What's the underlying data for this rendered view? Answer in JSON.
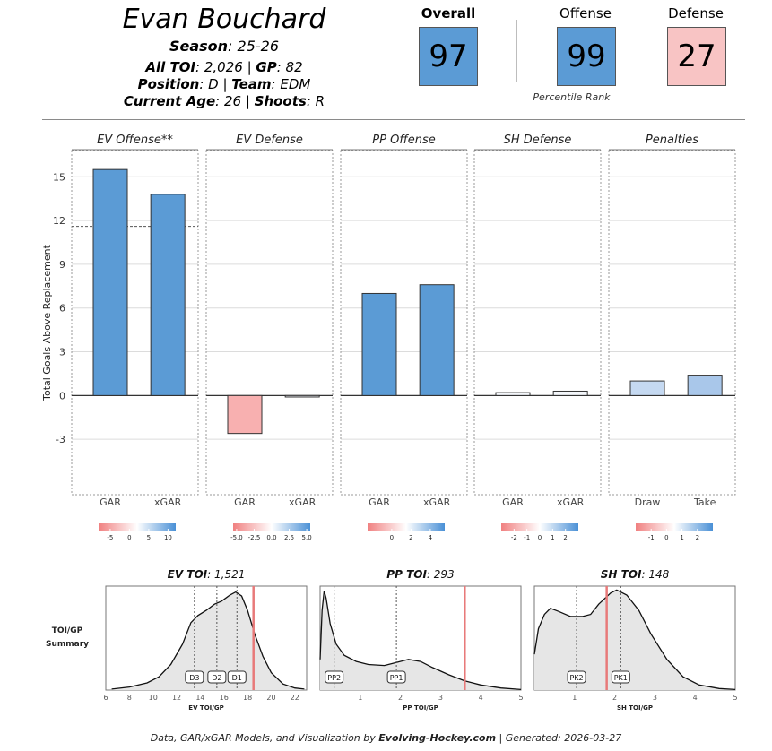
{
  "header": {
    "player_name": "Evan Bouchard",
    "season_label": "Season",
    "season": ": 25-26",
    "toi_label": "All TOI",
    "toi": ": 2,026 | ",
    "gp_label": "GP",
    "gp": ": 82",
    "position_label": "Position",
    "position": ": D | ",
    "team_label": "Team",
    "team": ": EDM",
    "age_label": "Current Age",
    "age": ": 26 | ",
    "shoots_label": "Shoots",
    "shoots": ": R"
  },
  "ranks": {
    "overall_label": "Overall",
    "overall": "97",
    "offense_label": "Offense",
    "offense": "99",
    "defense_label": "Defense",
    "defense": "27",
    "percentile_label": "Percentile Rank",
    "colors": {
      "overall": "#5b9bd5",
      "offense": "#5b9bd5",
      "defense": "#f8c4c4"
    }
  },
  "chart_data": [
    {
      "type": "bar",
      "ylabel": "Total Goals Above Replacement",
      "ylim": [
        -6.8,
        16.8
      ],
      "yticks": [
        -3,
        0,
        3,
        6,
        9,
        12,
        15
      ],
      "panels": [
        {
          "title": "EV Offense**",
          "categories": [
            "GAR",
            "xGAR"
          ],
          "values": [
            15.5,
            13.8
          ],
          "fills": [
            "#5b9bd5",
            "#5b9bd5"
          ],
          "reference": 11.6,
          "legend": {
            "ticks": [
              "-5",
              "0",
              "5",
              "10"
            ],
            "min": -8,
            "max": 12
          }
        },
        {
          "title": "EV Defense",
          "categories": [
            "GAR",
            "xGAR"
          ],
          "values": [
            -2.6,
            -0.1
          ],
          "fills": [
            "#f8b0b0",
            "#eef1f6"
          ],
          "legend": {
            "ticks": [
              "-5.0",
              "-2.5",
              "0.0",
              "2.5",
              "5.0"
            ],
            "min": -5.5,
            "max": 5.5
          }
        },
        {
          "title": "PP Offense",
          "categories": [
            "GAR",
            "xGAR"
          ],
          "values": [
            7.0,
            7.6
          ],
          "fills": [
            "#5b9bd5",
            "#5b9bd5"
          ],
          "legend": {
            "ticks": [
              "0",
              "2",
              "4"
            ],
            "min": -2.5,
            "max": 5.5
          }
        },
        {
          "title": "SH Defense",
          "categories": [
            "GAR",
            "xGAR"
          ],
          "values": [
            0.2,
            0.3
          ],
          "fills": [
            "#f4f7fb",
            "#f4f7fb"
          ],
          "legend": {
            "ticks": [
              "-2",
              "-1",
              "0",
              "1",
              "2"
            ],
            "min": -3,
            "max": 3
          }
        },
        {
          "title": "Penalties",
          "categories": [
            "Draw",
            "Take"
          ],
          "values": [
            1.0,
            1.4
          ],
          "fills": [
            "#c5d9f1",
            "#a9c7ea"
          ],
          "legend": {
            "ticks": [
              "-1",
              "0",
              "1",
              "2"
            ],
            "min": -2,
            "max": 3
          }
        }
      ]
    },
    {
      "type": "area",
      "row_label": [
        "TOI/GP",
        "Summary"
      ],
      "panels": [
        {
          "title": "EV TOI",
          "value": ": 1,521",
          "xlabel": "EV TOI/GP",
          "xlim": [
            6,
            23
          ],
          "xticks": [
            6,
            8,
            10,
            12,
            14,
            16,
            18,
            20,
            22
          ],
          "density": [
            [
              6.5,
              0.01
            ],
            [
              8,
              0.03
            ],
            [
              9.5,
              0.07
            ],
            [
              10.5,
              0.13
            ],
            [
              11.5,
              0.25
            ],
            [
              12.5,
              0.45
            ],
            [
              13.2,
              0.66
            ],
            [
              13.8,
              0.73
            ],
            [
              14.5,
              0.78
            ],
            [
              15.2,
              0.84
            ],
            [
              15.8,
              0.87
            ],
            [
              16.5,
              0.93
            ],
            [
              17,
              0.96
            ],
            [
              17.5,
              0.92
            ],
            [
              18,
              0.78
            ],
            [
              18.6,
              0.55
            ],
            [
              19.3,
              0.33
            ],
            [
              20,
              0.17
            ],
            [
              21,
              0.06
            ],
            [
              22,
              0.02
            ],
            [
              22.8,
              0.01
            ]
          ],
          "guides": [
            {
              "label": "D3",
              "x": 13.5
            },
            {
              "label": "D2",
              "x": 15.4
            },
            {
              "label": "D1",
              "x": 17.1
            }
          ],
          "player": 18.5
        },
        {
          "title": "PP TOI",
          "value": ": 293",
          "xlabel": "PP TOI/GP",
          "xlim": [
            0,
            5
          ],
          "xticks": [
            1,
            2,
            3,
            4,
            5
          ],
          "density": [
            [
              0,
              0.3
            ],
            [
              0.05,
              0.78
            ],
            [
              0.1,
              0.97
            ],
            [
              0.15,
              0.9
            ],
            [
              0.25,
              0.65
            ],
            [
              0.4,
              0.45
            ],
            [
              0.6,
              0.34
            ],
            [
              0.9,
              0.28
            ],
            [
              1.2,
              0.25
            ],
            [
              1.6,
              0.24
            ],
            [
              1.9,
              0.27
            ],
            [
              2.2,
              0.3
            ],
            [
              2.5,
              0.28
            ],
            [
              2.8,
              0.22
            ],
            [
              3.2,
              0.15
            ],
            [
              3.6,
              0.09
            ],
            [
              4,
              0.05
            ],
            [
              4.5,
              0.02
            ],
            [
              5,
              0.005
            ]
          ],
          "guides": [
            {
              "label": "PP2",
              "x": 0.35
            },
            {
              "label": "PP1",
              "x": 1.9
            }
          ],
          "player": 3.6
        },
        {
          "title": "SH TOI",
          "value": ": 148",
          "xlabel": "SH TOI/GP",
          "xlim": [
            0,
            5
          ],
          "xticks": [
            1,
            2,
            3,
            4,
            5
          ],
          "density": [
            [
              0,
              0.35
            ],
            [
              0.1,
              0.6
            ],
            [
              0.25,
              0.74
            ],
            [
              0.4,
              0.8
            ],
            [
              0.6,
              0.77
            ],
            [
              0.9,
              0.72
            ],
            [
              1.2,
              0.72
            ],
            [
              1.4,
              0.74
            ],
            [
              1.6,
              0.84
            ],
            [
              1.9,
              0.95
            ],
            [
              2.05,
              0.98
            ],
            [
              2.3,
              0.93
            ],
            [
              2.6,
              0.78
            ],
            [
              2.9,
              0.55
            ],
            [
              3.3,
              0.3
            ],
            [
              3.7,
              0.13
            ],
            [
              4.1,
              0.05
            ],
            [
              4.6,
              0.015
            ],
            [
              5,
              0.005
            ]
          ],
          "guides": [
            {
              "label": "PK2",
              "x": 1.05
            },
            {
              "label": "PK1",
              "x": 2.15
            }
          ],
          "player": 1.8
        }
      ]
    }
  ],
  "footer": {
    "prefix": "Data, GAR/xGAR Models, and Visualization by ",
    "site": "Evolving-Hockey.com",
    "suffix": " | Generated: 2026-03-27"
  }
}
